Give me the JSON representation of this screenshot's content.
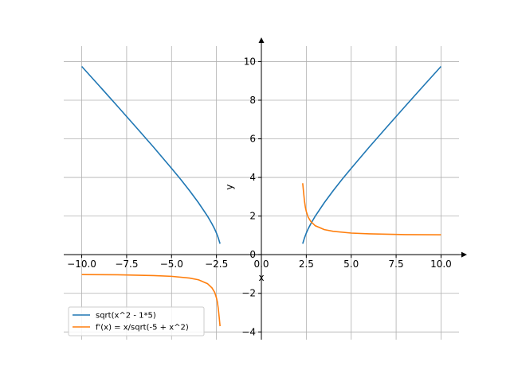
{
  "chart_data": {
    "type": "line",
    "xlabel": "x",
    "ylabel": "y",
    "xlim": [
      -11,
      11
    ],
    "ylim": [
      -4.4,
      10.8
    ],
    "grid": true,
    "legend_position": "lower-left",
    "x_ticks": [
      -10.0,
      -7.5,
      -5.0,
      -2.5,
      0.0,
      2.5,
      5.0,
      7.5,
      10.0
    ],
    "x_tick_labels": [
      "−10.0",
      "−7.5",
      "−5.0",
      "−2.5",
      "0.0",
      "2.5",
      "5.0",
      "7.5",
      "10.0"
    ],
    "y_ticks": [
      -4,
      -2,
      0,
      2,
      4,
      6,
      8,
      10
    ],
    "y_tick_labels": [
      "−4",
      "−2",
      "0",
      "2",
      "4",
      "6",
      "8",
      "10"
    ],
    "series": [
      {
        "name": "sqrt(x^2 - 1*5)",
        "color": "#1f77b4",
        "segments": [
          [
            [
              -10.0,
              9.75
            ],
            [
              -9.0,
              8.72
            ],
            [
              -8.0,
              7.68
            ],
            [
              -7.0,
              6.63
            ],
            [
              -6.0,
              5.57
            ],
            [
              -5.0,
              4.47
            ],
            [
              -4.5,
              3.91
            ],
            [
              -4.0,
              3.32
            ],
            [
              -3.5,
              2.69
            ],
            [
              -3.0,
              2.0
            ],
            [
              -2.75,
              1.6
            ],
            [
              -2.6,
              1.33
            ],
            [
              -2.5,
              1.12
            ],
            [
              -2.4,
              0.87
            ],
            [
              -2.3,
              0.57
            ]
          ],
          [
            [
              2.3,
              0.57
            ],
            [
              2.4,
              0.87
            ],
            [
              2.5,
              1.12
            ],
            [
              2.6,
              1.33
            ],
            [
              2.75,
              1.6
            ],
            [
              3.0,
              2.0
            ],
            [
              3.5,
              2.69
            ],
            [
              4.0,
              3.32
            ],
            [
              4.5,
              3.91
            ],
            [
              5.0,
              4.47
            ],
            [
              6.0,
              5.57
            ],
            [
              7.0,
              6.63
            ],
            [
              8.0,
              7.68
            ],
            [
              9.0,
              8.72
            ],
            [
              10.0,
              9.75
            ]
          ]
        ]
      },
      {
        "name": "f'(x) = x/sqrt(-5 + x^2)",
        "color": "#ff7f0e",
        "segments": [
          [
            [
              -10.0,
              -1.03
            ],
            [
              -8.0,
              -1.04
            ],
            [
              -6.0,
              -1.08
            ],
            [
              -5.0,
              -1.12
            ],
            [
              -4.0,
              -1.21
            ],
            [
              -3.5,
              -1.3
            ],
            [
              -3.0,
              -1.5
            ],
            [
              -2.75,
              -1.72
            ],
            [
              -2.6,
              -1.95
            ],
            [
              -2.5,
              -2.24
            ],
            [
              -2.45,
              -2.45
            ],
            [
              -2.4,
              -2.77
            ],
            [
              -2.35,
              -3.22
            ],
            [
              -2.3,
              -3.7
            ]
          ],
          [
            [
              2.3,
              3.7
            ],
            [
              2.35,
              3.22
            ],
            [
              2.4,
              2.77
            ],
            [
              2.45,
              2.45
            ],
            [
              2.5,
              2.24
            ],
            [
              2.6,
              1.95
            ],
            [
              2.75,
              1.72
            ],
            [
              3.0,
              1.5
            ],
            [
              3.5,
              1.3
            ],
            [
              4.0,
              1.21
            ],
            [
              5.0,
              1.12
            ],
            [
              6.0,
              1.08
            ],
            [
              8.0,
              1.04
            ],
            [
              10.0,
              1.03
            ]
          ]
        ]
      }
    ]
  }
}
